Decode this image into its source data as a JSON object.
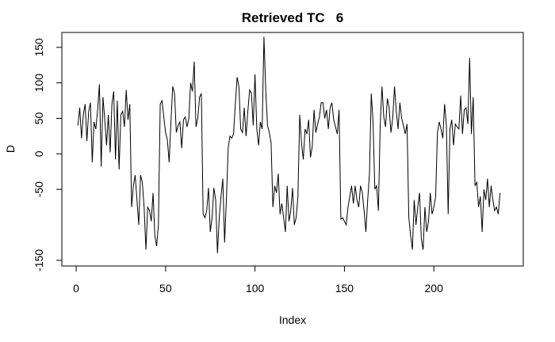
{
  "chart_data": {
    "type": "line",
    "title": "Retrieved TC   6",
    "xlabel": "Index",
    "ylabel": "D",
    "xlim": [
      -8,
      250
    ],
    "ylim": [
      -158,
      171
    ],
    "x_ticks": [
      0,
      50,
      100,
      150,
      200
    ],
    "y_ticks": [
      -150,
      -50,
      0,
      50,
      100,
      150
    ],
    "x_tick_labels": [
      "0",
      "50",
      "100",
      "150",
      "200"
    ],
    "y_tick_labels": [
      "-150",
      "-50",
      "0",
      "50",
      "100",
      "150"
    ],
    "grid": false,
    "series": [
      {
        "values": [
          40,
          65,
          22,
          55,
          70,
          18,
          60,
          72,
          -12,
          45,
          35,
          62,
          98,
          -18,
          80,
          48,
          12,
          55,
          2,
          70,
          88,
          -8,
          75,
          -22,
          55,
          60,
          38,
          90,
          48,
          70,
          -75,
          -45,
          -30,
          -65,
          -100,
          -30,
          -40,
          -75,
          -135,
          -75,
          -80,
          -95,
          -55,
          -115,
          -130,
          -100,
          70,
          75,
          52,
          30,
          20,
          -12,
          45,
          95,
          85,
          30,
          40,
          45,
          8,
          48,
          52,
          38,
          50,
          100,
          88,
          130,
          38,
          50,
          80,
          85,
          -85,
          -90,
          -80,
          -48,
          -110,
          -90,
          -48,
          -65,
          -140,
          -90,
          -60,
          -35,
          -125,
          -65,
          8,
          25,
          22,
          28,
          70,
          108,
          95,
          35,
          30,
          65,
          25,
          60,
          90,
          85,
          40,
          112,
          35,
          12,
          45,
          35,
          165,
          90,
          40,
          30,
          15,
          -75,
          -45,
          -55,
          -28,
          -85,
          -70,
          -90,
          -110,
          -45,
          -95,
          -80,
          -48,
          -100,
          -90,
          -60,
          55,
          15,
          -8,
          35,
          28,
          48,
          -5,
          10,
          62,
          30,
          42,
          52,
          72,
          72,
          50,
          62,
          35,
          65,
          72,
          48,
          38,
          28,
          62,
          -92,
          -90,
          -95,
          -100,
          -75,
          -60,
          -45,
          -70,
          -45,
          -65,
          -75,
          -45,
          -55,
          -80,
          -110,
          -65,
          -28,
          85,
          45,
          -50,
          -45,
          -80,
          40,
          95,
          52,
          38,
          78,
          65,
          30,
          50,
          95,
          60,
          35,
          72,
          50,
          40,
          28,
          42,
          -90,
          -115,
          -135,
          -65,
          -100,
          -75,
          -55,
          -120,
          -135,
          -75,
          -110,
          -95,
          -55,
          -85,
          -75,
          -60,
          30,
          45,
          35,
          22,
          70,
          40,
          -85,
          35,
          48,
          12,
          42,
          38,
          35,
          82,
          28,
          62,
          65,
          42,
          135,
          28,
          80,
          -45,
          -40,
          -75,
          -60,
          -110,
          -50,
          -65,
          -35,
          -75,
          -45,
          -65,
          -80,
          -75,
          -85,
          -55
        ]
      }
    ]
  }
}
